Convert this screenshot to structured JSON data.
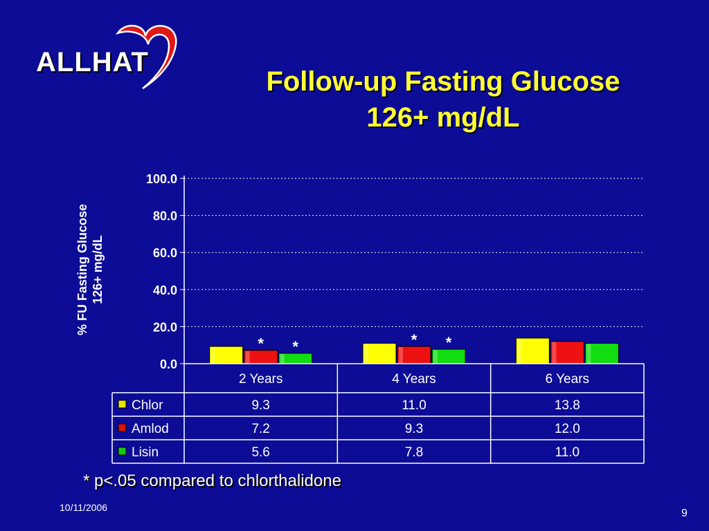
{
  "logo": {
    "text": "ALLHAT"
  },
  "title": {
    "line1": "Follow-up Fasting Glucose",
    "line2": "126+ mg/dL"
  },
  "chart_data": {
    "type": "bar",
    "ylabel_line1": "% FU Fasting Glucose",
    "ylabel_line2": "126+ mg/dL",
    "ylim": [
      0,
      100
    ],
    "yticks": [
      "100.0",
      "80.0",
      "60.0",
      "40.0",
      "20.0",
      "0.0"
    ],
    "ytick_values": [
      100,
      80,
      60,
      40,
      20,
      0
    ],
    "grid": true,
    "categories": [
      "2 Years",
      "4 Years",
      "6 Years"
    ],
    "series": [
      {
        "name": "Chlor",
        "values": [
          9.3,
          11.0,
          13.8
        ],
        "value_labels": [
          "9.3",
          "11.0",
          "13.8"
        ],
        "color": "#ffff00",
        "legend_color": "#e6e600"
      },
      {
        "name": "Amlod",
        "values": [
          7.2,
          9.3,
          12.0
        ],
        "value_labels": [
          "7.2",
          "9.3",
          "12.0"
        ],
        "color": "#ee1111",
        "legend_color": "#dd1111"
      },
      {
        "name": "Lisin",
        "values": [
          5.6,
          7.8,
          11.0
        ],
        "value_labels": [
          "5.6",
          "7.8",
          "11.0"
        ],
        "color": "#11dd11",
        "legend_color": "#11cc11"
      }
    ],
    "annotations": [
      {
        "text": "*",
        "category": 0,
        "series": 1
      },
      {
        "text": "*",
        "category": 0,
        "series": 2
      },
      {
        "text": "*",
        "category": 1,
        "series": 1
      },
      {
        "text": "*",
        "category": 1,
        "series": 2
      }
    ],
    "data_table": true
  },
  "footnote": "* p<.05 compared to chlorthalidone",
  "date": "10/11/2006",
  "page_number": "9",
  "colors": {
    "background": "#0c0c96",
    "title": "#ffff33",
    "text": "#ffffff",
    "heart": "#e01818"
  }
}
